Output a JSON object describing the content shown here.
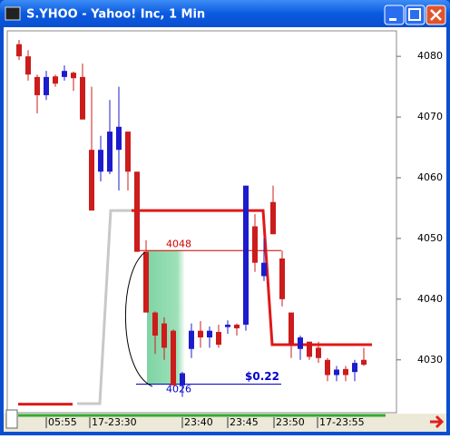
{
  "window": {
    "title": "S.YHOO - Yahoo! Inc, 1 Min"
  },
  "chart_data": {
    "type": "candlestick",
    "up_color": "#1c1ccc",
    "down_color": "#cc1c1c",
    "open": [
      4082,
      4080,
      4076.6,
      4073.6,
      4076.7,
      4076.6,
      4077.3,
      4076.6,
      4064.6,
      4061,
      4061,
      4064.6,
      4067.6,
      4061,
      4047.8,
      4037.8,
      4036,
      4034.8,
      4025.8,
      4031.8,
      4034.8,
      4033.7,
      4034.6,
      4035.4,
      4035.8,
      4035.8,
      4052,
      4043.8,
      4056,
      4046.7,
      4037.8,
      4031.8,
      4033,
      4032,
      4030,
      4027.5,
      4028.5,
      4028,
      4030
    ],
    "high": [
      4082.7,
      4081,
      4077,
      4077.6,
      4077,
      4078.5,
      4077.5,
      4078.8,
      4075,
      4066.9,
      4072.8,
      4075,
      4067.6,
      4061,
      4049.7,
      4038,
      4037,
      4035,
      4028,
      4036,
      4036.4,
      4035.5,
      4035.8,
      4036.5,
      4036,
      4058.7,
      4054,
      4050,
      4058.7,
      4048,
      4037.8,
      4034,
      4033,
      4033,
      4030.3,
      4029,
      4029,
      4030,
      4032
    ],
    "low": [
      4079.4,
      4076,
      4070.6,
      4072.8,
      4075,
      4076,
      4074.3,
      4069.6,
      4054.6,
      4059.4,
      4060.6,
      4057.9,
      4057.9,
      4047.8,
      4037.8,
      4031,
      4030,
      4025.8,
      4023.9,
      4030.3,
      4032,
      4032,
      4032,
      4034.3,
      4034,
      4034.8,
      4044.5,
      4043,
      4050.7,
      4038.8,
      4030.3,
      4030,
      4030,
      4029.5,
      4026.5,
      4026.5,
      4026.5,
      4026.5,
      4029
    ],
    "close": [
      4080,
      4077,
      4073.6,
      4076.6,
      4075.5,
      4077.6,
      4076.4,
      4069.6,
      4054.6,
      4064.6,
      4067.6,
      4068.4,
      4061,
      4047.8,
      4037.8,
      4034,
      4032,
      4025.8,
      4027.8,
      4034.8,
      4033.7,
      4034.8,
      4032.5,
      4035.8,
      4035.2,
      4058.7,
      4046,
      4046,
      4050.7,
      4040,
      4032.5,
      4033.7,
      4030.5,
      4030.3,
      4027.5,
      4028.4,
      4027.5,
      4029.5,
      4029.2
    ],
    "lines": [
      {
        "color": "#c8c8c8",
        "x": [
          6.4,
          8.9,
          10.1,
          12.9
        ],
        "values": [
          4022.8,
          4022.8,
          4054.6,
          4054.6
        ]
      },
      {
        "color": "#e01818",
        "x": [
          12.4,
          26.9,
          27.9,
          38.9
        ],
        "values": [
          4054.6,
          4054.6,
          4032.5,
          4032.5
        ]
      },
      {
        "color": "#e01818",
        "x": [
          -0.1,
          5.9
        ],
        "values": [
          4022.7,
          4022.7
        ]
      }
    ],
    "price_lines": [
      {
        "value": 4048,
        "color": "#d00000"
      },
      {
        "value": 4026,
        "color": "#0000cc"
      }
    ],
    "annotation": "$0.22",
    "ylim": [
      4021.3,
      4084.2
    ],
    "yticks": [
      4030,
      4040,
      4050,
      4060,
      4070,
      4080
    ],
    "xticks": [
      {
        "value": 3,
        "label": "05:55"
      },
      {
        "value": 7.8,
        "label": "17-23:30"
      },
      {
        "value": 18,
        "label": "23:40"
      },
      {
        "value": 23,
        "label": "23:45"
      },
      {
        "value": 28.1,
        "label": "23:50"
      },
      {
        "value": 32.9,
        "label": "17-23:55"
      }
    ]
  }
}
